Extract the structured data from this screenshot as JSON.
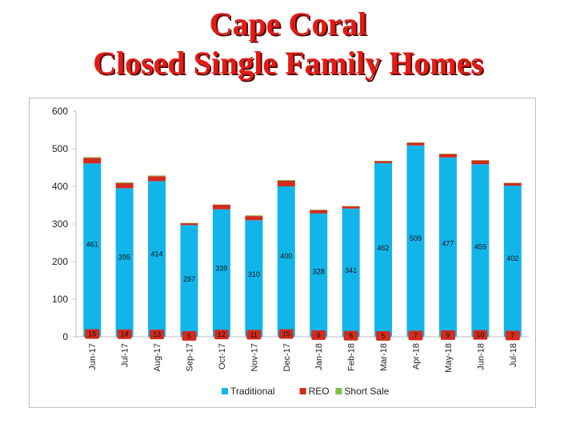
{
  "page": {
    "title_line1": "Cape Coral",
    "title_line2": "Closed Single Family Homes"
  },
  "colors": {
    "title": "#e31b14",
    "traditional": "#12b5ea",
    "reo": "#d22b1e",
    "short_sale": "#7dc242"
  },
  "chart_data": {
    "type": "bar",
    "stacked": true,
    "categories": [
      "Jun-17",
      "Jul-17",
      "Aug-17",
      "Sep-17",
      "Oct-17",
      "Nov-17",
      "Dec-17",
      "Jan-18",
      "Feb-18",
      "Mar-18",
      "Apr-18",
      "May-18",
      "Jun-18",
      "Jul-18"
    ],
    "series": [
      {
        "name": "Traditional",
        "values": [
          461,
          395,
          414,
          297,
          339,
          310,
          400,
          328,
          341,
          462,
          509,
          477,
          459,
          402
        ]
      },
      {
        "name": "REO",
        "values": [
          15,
          14,
          13,
          5,
          12,
          11,
          15,
          9,
          6,
          5,
          7,
          9,
          10,
          7
        ]
      },
      {
        "name": "Short Sale",
        "values": [
          2,
          2,
          2,
          1,
          1,
          2,
          2,
          1,
          1,
          1,
          1,
          1,
          1,
          1
        ]
      }
    ],
    "ylim": [
      0,
      600
    ],
    "yticks": [
      0,
      100,
      200,
      300,
      400,
      500,
      600
    ],
    "legend_position": "bottom",
    "grid": false
  }
}
